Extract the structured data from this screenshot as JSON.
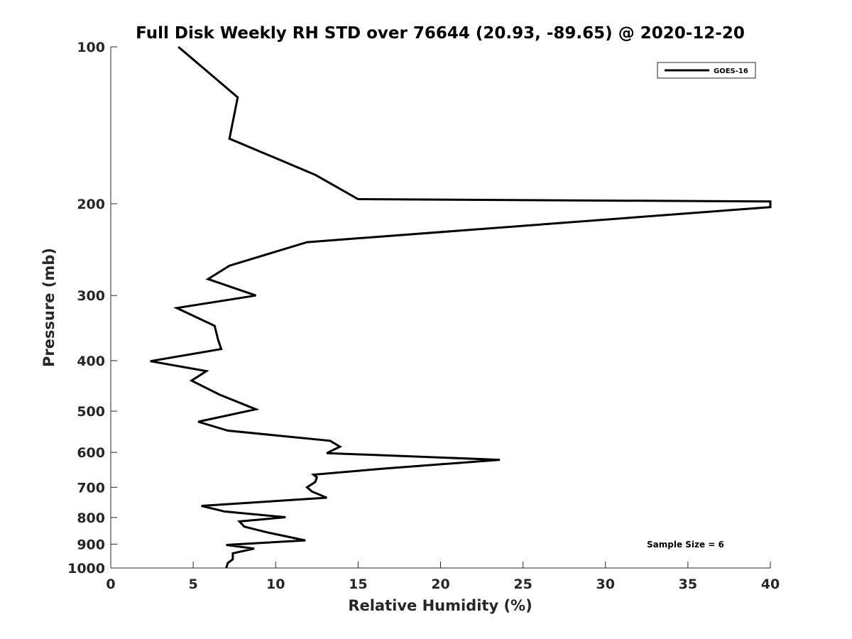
{
  "chart_data": {
    "type": "line",
    "title": "Full Disk Weekly RH STD over 76644 (20.93, -89.65) @ 2020-12-20",
    "xlabel": "Relative Humidity (%)",
    "ylabel": "Pressure (mb)",
    "xlim": [
      0,
      40
    ],
    "ylim": [
      100,
      1000
    ],
    "yscale": "log",
    "yreversed": true,
    "xticks": [
      0,
      5,
      10,
      15,
      20,
      25,
      30,
      35,
      40
    ],
    "yticks": [
      100,
      200,
      300,
      400,
      500,
      600,
      700,
      800,
      900,
      1000
    ],
    "legend": {
      "location": "top-right",
      "entries": [
        "GOES-16"
      ]
    },
    "annotation": "Sample Size = 6",
    "series": [
      {
        "name": "GOES-16",
        "color": "#000000",
        "points": [
          [
            4.1,
            100
          ],
          [
            7.7,
            125
          ],
          [
            7.2,
            150
          ],
          [
            12.4,
            176
          ],
          [
            15.0,
            196
          ],
          [
            40.0,
            198
          ],
          [
            40.0,
            203
          ],
          [
            11.9,
            237
          ],
          [
            7.2,
            263
          ],
          [
            5.9,
            279
          ],
          [
            8.8,
            300
          ],
          [
            4.0,
            317
          ],
          [
            6.3,
            343
          ],
          [
            6.5,
            364
          ],
          [
            6.7,
            380
          ],
          [
            2.4,
            401
          ],
          [
            5.8,
            419
          ],
          [
            4.9,
            437
          ],
          [
            6.6,
            465
          ],
          [
            8.8,
            496
          ],
          [
            5.3,
            524
          ],
          [
            7.1,
            545
          ],
          [
            13.3,
            570
          ],
          [
            13.9,
            585
          ],
          [
            13.1,
            602
          ],
          [
            23.6,
            620
          ],
          [
            16.7,
            644
          ],
          [
            12.3,
            662
          ],
          [
            12.5,
            670
          ],
          [
            12.4,
            684
          ],
          [
            11.9,
            700
          ],
          [
            12.2,
            713
          ],
          [
            13.1,
            733
          ],
          [
            5.5,
            760
          ],
          [
            6.9,
            779
          ],
          [
            10.6,
            799
          ],
          [
            7.8,
            814
          ],
          [
            8.1,
            833
          ],
          [
            9.6,
            856
          ],
          [
            11.8,
            885
          ],
          [
            7.0,
            903
          ],
          [
            8.7,
            918
          ],
          [
            7.4,
            937
          ],
          [
            7.4,
            962
          ],
          [
            7.1,
            978
          ],
          [
            7.0,
            1000
          ]
        ]
      }
    ]
  }
}
